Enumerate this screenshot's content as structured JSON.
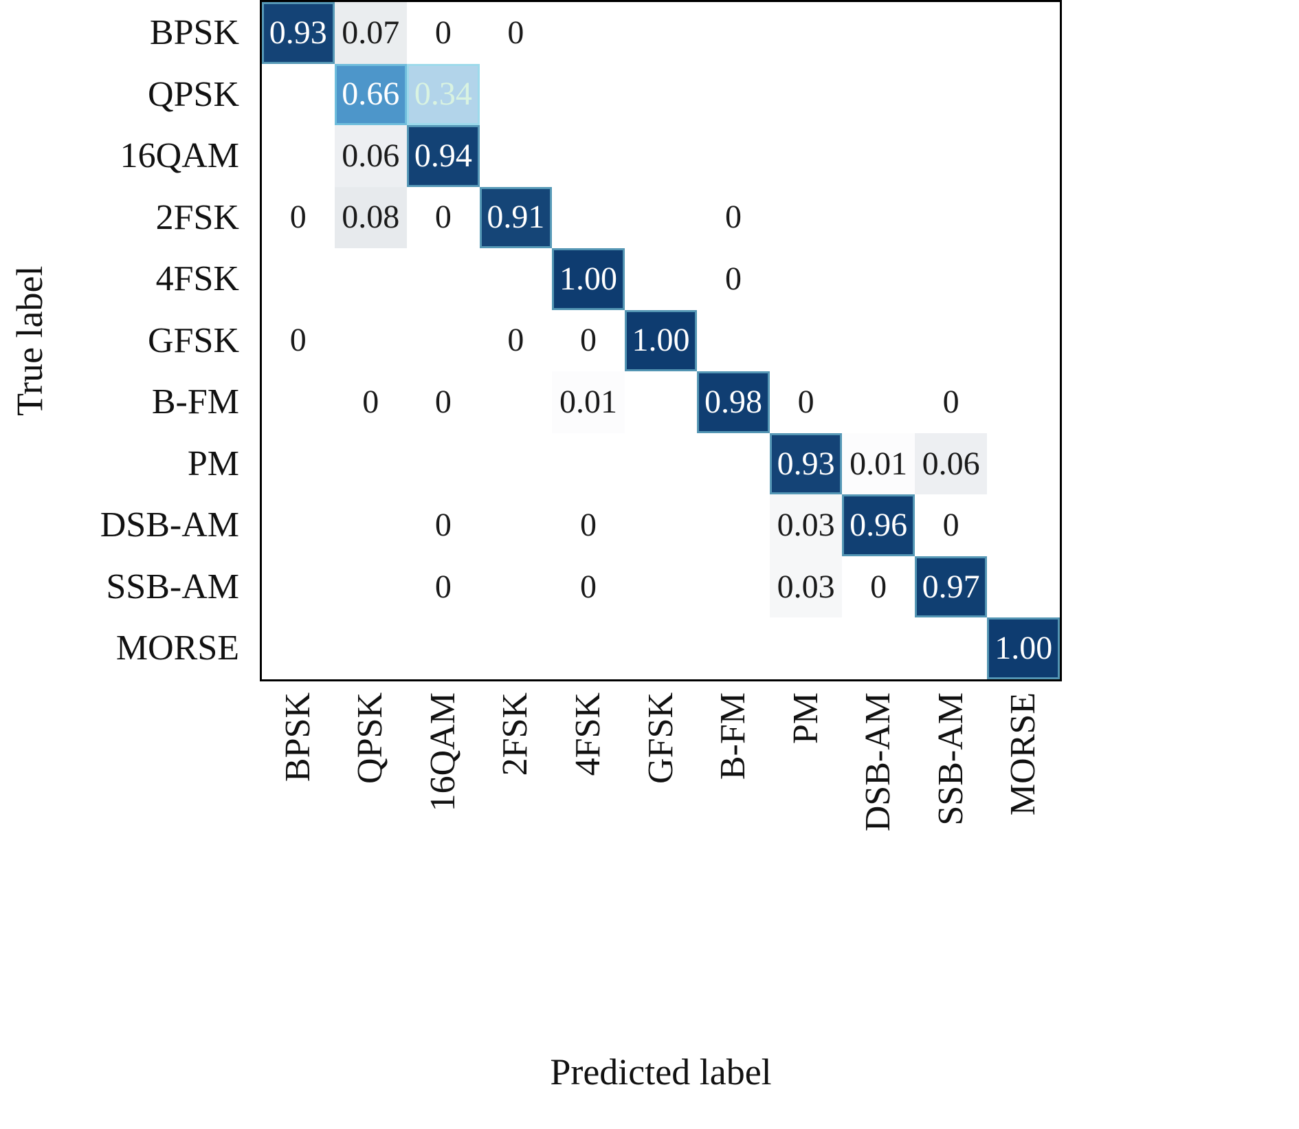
{
  "chart_data": {
    "type": "heatmap",
    "xlabel": "Predicted label",
    "ylabel": "True label",
    "x_tick_labels": [
      "BPSK",
      "QPSK",
      "16QAM",
      "2FSK",
      "4FSK",
      "GFSK",
      "B-FM",
      "PM",
      "DSB-AM",
      "SSB-AM",
      "MORSE"
    ],
    "y_tick_labels": [
      "BPSK",
      "QPSK",
      "16QAM",
      "2FSK",
      "4FSK",
      "GFSK",
      "B-FM",
      "PM",
      "DSB-AM",
      "SSB-AM",
      "MORSE"
    ],
    "matrix": [
      [
        "0.93",
        "0.07",
        "0",
        "0",
        null,
        null,
        null,
        null,
        null,
        null,
        null
      ],
      [
        null,
        "0.66",
        "0.34",
        null,
        null,
        null,
        null,
        null,
        null,
        null,
        null
      ],
      [
        null,
        "0.06",
        "0.94",
        null,
        null,
        null,
        null,
        null,
        null,
        null,
        null
      ],
      [
        "0",
        "0.08",
        "0",
        "0.91",
        null,
        null,
        "0",
        null,
        null,
        null,
        null
      ],
      [
        null,
        null,
        null,
        null,
        "1.00",
        null,
        "0",
        null,
        null,
        null,
        null
      ],
      [
        "0",
        null,
        null,
        "0",
        "0",
        "1.00",
        null,
        null,
        null,
        null,
        null
      ],
      [
        null,
        "0",
        "0",
        null,
        "0.01",
        null,
        "0.98",
        "0",
        null,
        "0",
        null
      ],
      [
        null,
        null,
        null,
        null,
        null,
        null,
        null,
        "0.93",
        "0.01",
        "0.06",
        null
      ],
      [
        null,
        null,
        "0",
        null,
        "0",
        null,
        null,
        "0.03",
        "0.96",
        "0",
        null
      ],
      [
        null,
        null,
        "0",
        null,
        "0",
        null,
        null,
        "0.03",
        "0",
        "0.97",
        null
      ],
      [
        null,
        null,
        null,
        null,
        null,
        null,
        null,
        null,
        null,
        null,
        "1.00"
      ]
    ],
    "value_range": [
      0,
      1
    ],
    "grid": false,
    "legend": false
  },
  "colors": {
    "border": "#000000",
    "background": "#ffffff",
    "cell_text_dark": "#1a1a1a",
    "cell_text_light": "#ffffff",
    "cell_text_mint": "#d9f3e1",
    "diag_outline": "rgba(140, 222, 235, 0.55)",
    "colormap_stops": [
      {
        "v": 0.0,
        "c": "#ffffff"
      },
      {
        "v": 0.08,
        "c": "#e7eaed"
      },
      {
        "v": 0.34,
        "c": "#b2d4ea"
      },
      {
        "v": 0.66,
        "c": "#4d96ca"
      },
      {
        "v": 0.9,
        "c": "#164678"
      },
      {
        "v": 1.0,
        "c": "#0e3c70"
      }
    ]
  }
}
